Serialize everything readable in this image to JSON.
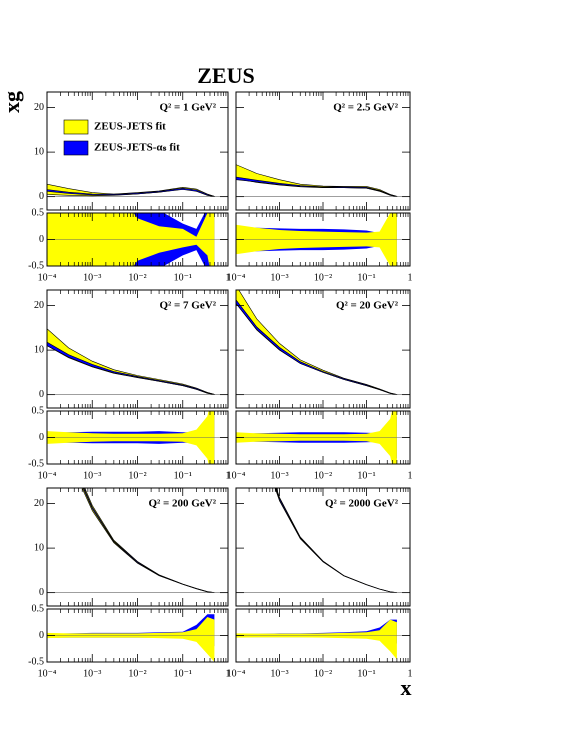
{
  "title": "ZEUS",
  "ylabel": "xg",
  "xlabel": "x",
  "chart_data": [
    {
      "type": "band",
      "annotation": "Q² = 1 GeV²",
      "log_x": true,
      "xlim": [
        0.0001,
        1
      ],
      "ylim": [
        -3,
        23.5
      ],
      "xticks": [
        0.0001,
        0.001,
        0.01,
        0.1,
        1
      ],
      "yticks": [
        0,
        10,
        20
      ],
      "x": [
        0.0001,
        0.0003,
        0.001,
        0.003,
        0.01,
        0.03,
        0.1,
        0.2,
        0.35,
        0.5
      ],
      "series": [
        {
          "name": "ZEUS-JETS fit",
          "color": "#ffff00",
          "low": [
            0.5,
            0.3,
            0.2,
            0.3,
            0.6,
            1.0,
            1.7,
            1.3,
            0.3,
            0
          ],
          "high": [
            2.8,
            1.8,
            0.9,
            0.6,
            0.9,
            1.3,
            2.1,
            1.7,
            0.6,
            0.05
          ]
        },
        {
          "name": "ZEUS-JETS-αₛ fit",
          "color": "#0000ff",
          "low": [
            1.2,
            0.7,
            0.4,
            0.35,
            0.6,
            1.0,
            1.6,
            1.2,
            0.3,
            0
          ],
          "high": [
            1.6,
            1.0,
            0.6,
            0.55,
            0.8,
            1.2,
            1.9,
            1.5,
            0.5,
            0.05
          ]
        }
      ]
    },
    {
      "type": "band",
      "log_x": true,
      "xlim": [
        0.0001,
        1
      ],
      "ylim": [
        -0.5,
        0.5
      ],
      "xticks": [
        {
          "value": 0.0001,
          "label": "10⁻⁴"
        },
        {
          "value": 0.001,
          "label": "10⁻³"
        },
        {
          "value": 0.01,
          "label": "10⁻²"
        },
        {
          "value": 0.1,
          "label": "10⁻¹"
        },
        1
      ],
      "yticks": [
        -0.5,
        0,
        0.5
      ],
      "x": [
        0.0001,
        0.0003,
        0.001,
        0.003,
        0.01,
        0.03,
        0.1,
        0.2,
        0.35,
        0.5
      ],
      "series": [
        {
          "color": "#0000ff",
          "low": [
            -1,
            -1,
            -1,
            -1,
            -1,
            -0.55,
            -0.3,
            -0.2,
            -0.6,
            -1
          ],
          "high": [
            1,
            1,
            1,
            1,
            1,
            0.55,
            0.3,
            0.2,
            0.6,
            1
          ]
        },
        {
          "color": "#ffff00",
          "low": [
            -1,
            -1,
            -1,
            -1,
            -0.4,
            -0.25,
            -0.15,
            -0.1,
            -0.3,
            -1
          ],
          "high": [
            1,
            1,
            1,
            1,
            0.4,
            0.25,
            0.2,
            0.05,
            0.5,
            1
          ]
        }
      ]
    },
    {
      "type": "band",
      "annotation": "Q² = 2.5 GeV²",
      "log_x": true,
      "xlim": [
        0.0001,
        1
      ],
      "ylim": [
        -3,
        23.5
      ],
      "xticks": [
        0.0001,
        0.001,
        0.01,
        0.1,
        1
      ],
      "yticks": [
        0,
        10,
        20
      ],
      "x": [
        0.0001,
        0.0003,
        0.001,
        0.003,
        0.01,
        0.03,
        0.1,
        0.2,
        0.35,
        0.5
      ],
      "series": [
        {
          "color": "#ffff00",
          "low": [
            4.0,
            3.2,
            2.6,
            2.2,
            2.0,
            2.0,
            1.9,
            1.2,
            0.3,
            0
          ],
          "high": [
            7.2,
            5.2,
            3.8,
            2.8,
            2.4,
            2.3,
            2.3,
            1.6,
            0.5,
            0.05
          ]
        },
        {
          "color": "#0000ff",
          "low": [
            3.8,
            3.3,
            2.7,
            2.3,
            2.1,
            2.0,
            1.9,
            1.3,
            0.35,
            0
          ],
          "high": [
            4.4,
            3.7,
            3.0,
            2.5,
            2.2,
            2.2,
            2.1,
            1.4,
            0.45,
            0.05
          ]
        }
      ]
    },
    {
      "type": "band",
      "log_x": true,
      "xlim": [
        0.0001,
        1
      ],
      "ylim": [
        -0.5,
        0.5
      ],
      "xticks": [
        {
          "value": 0.0001,
          "label": "10⁻⁴"
        },
        {
          "value": 0.001,
          "label": "10⁻³"
        },
        {
          "value": 0.01,
          "label": "10⁻²"
        },
        {
          "value": 0.1,
          "label": "10⁻¹"
        },
        1
      ],
      "yticks": [
        -0.5,
        0,
        0.5
      ],
      "x": [
        0.0001,
        0.0003,
        0.001,
        0.003,
        0.01,
        0.03,
        0.1,
        0.2,
        0.35,
        0.5
      ],
      "series": [
        {
          "color": "#0000ff",
          "low": [
            -0.25,
            -0.22,
            -0.21,
            -0.2,
            -0.2,
            -0.19,
            -0.17,
            -0.12,
            -0.3,
            -0.6
          ],
          "high": [
            0.25,
            0.22,
            0.21,
            0.2,
            0.2,
            0.19,
            0.17,
            0.12,
            0.3,
            0.6
          ]
        },
        {
          "color": "#ffff00",
          "low": [
            -0.28,
            -0.22,
            -0.18,
            -0.16,
            -0.15,
            -0.14,
            -0.13,
            -0.15,
            -0.5,
            -1
          ],
          "high": [
            0.28,
            0.22,
            0.18,
            0.16,
            0.15,
            0.14,
            0.13,
            0.15,
            0.5,
            1
          ]
        }
      ]
    },
    {
      "type": "band",
      "annotation": "Q² = 7 GeV²",
      "log_x": true,
      "xlim": [
        0.0001,
        1
      ],
      "ylim": [
        -3,
        23.5
      ],
      "xticks": [
        0.0001,
        0.001,
        0.01,
        0.1,
        1
      ],
      "yticks": [
        0,
        10,
        20
      ],
      "x": [
        0.0001,
        0.0003,
        0.001,
        0.003,
        0.01,
        0.03,
        0.1,
        0.2,
        0.35,
        0.5
      ],
      "series": [
        {
          "color": "#ffff00",
          "low": [
            11,
            8.3,
            6.2,
            4.8,
            3.8,
            3.0,
            2.0,
            1.2,
            0.3,
            0
          ],
          "high": [
            14.8,
            10.5,
            7.5,
            5.6,
            4.3,
            3.4,
            2.4,
            1.5,
            0.5,
            0.05
          ]
        },
        {
          "color": "#0000ff",
          "low": [
            11.0,
            8.4,
            6.3,
            4.9,
            3.9,
            3.0,
            2.0,
            1.2,
            0.35,
            0
          ],
          "high": [
            11.8,
            9.0,
            6.8,
            5.2,
            4.1,
            3.2,
            2.2,
            1.4,
            0.45,
            0.05
          ]
        }
      ]
    },
    {
      "type": "band",
      "log_x": true,
      "xlim": [
        0.0001,
        1
      ],
      "ylim": [
        -0.5,
        0.5
      ],
      "xticks": [
        {
          "value": 0.0001,
          "label": "10⁻⁴"
        },
        {
          "value": 0.001,
          "label": "10⁻³"
        },
        {
          "value": 0.01,
          "label": "10⁻²"
        },
        {
          "value": 0.1,
          "label": "10⁻¹"
        },
        1
      ],
      "yticks": [
        -0.5,
        0,
        0.5
      ],
      "x": [
        0.0001,
        0.0003,
        0.001,
        0.003,
        0.01,
        0.03,
        0.1,
        0.2,
        0.35,
        0.5
      ],
      "series": [
        {
          "color": "#0000ff",
          "low": [
            -0.08,
            -0.1,
            -0.11,
            -0.11,
            -0.11,
            -0.12,
            -0.1,
            -0.1,
            -0.2,
            -0.5
          ],
          "high": [
            0.08,
            0.1,
            0.11,
            0.11,
            0.11,
            0.12,
            0.1,
            0.1,
            0.2,
            0.5
          ]
        },
        {
          "color": "#ffff00",
          "low": [
            -0.12,
            -0.1,
            -0.08,
            -0.07,
            -0.07,
            -0.07,
            -0.08,
            -0.15,
            -0.4,
            -1
          ],
          "high": [
            0.12,
            0.1,
            0.08,
            0.07,
            0.07,
            0.07,
            0.08,
            0.15,
            0.4,
            1
          ]
        }
      ]
    },
    {
      "type": "band",
      "annotation": "Q² = 20 GeV²",
      "log_x": true,
      "xlim": [
        0.0001,
        1
      ],
      "ylim": [
        -3,
        23.5
      ],
      "xticks": [
        0.0001,
        0.001,
        0.01,
        0.1,
        1
      ],
      "yticks": [
        0,
        10,
        20
      ],
      "x": [
        0.0001,
        0.0003,
        0.001,
        0.003,
        0.01,
        0.03,
        0.1,
        0.2,
        0.35,
        0.5
      ],
      "series": [
        {
          "color": "#ffff00",
          "low": [
            20.5,
            14.5,
            10,
            7,
            5,
            3.4,
            2.0,
            1.1,
            0.25,
            0
          ],
          "high": [
            24.5,
            17,
            11.5,
            7.8,
            5.5,
            3.7,
            2.3,
            1.3,
            0.4,
            0.04
          ]
        },
        {
          "color": "#0000ff",
          "low": [
            20.5,
            14.6,
            10.1,
            7.0,
            5.0,
            3.4,
            2.0,
            1.1,
            0.25,
            0
          ],
          "high": [
            21.3,
            15.2,
            10.6,
            7.4,
            5.2,
            3.6,
            2.2,
            1.2,
            0.35,
            0.04
          ]
        }
      ]
    },
    {
      "type": "band",
      "log_x": true,
      "xlim": [
        0.0001,
        1
      ],
      "ylim": [
        -0.5,
        0.5
      ],
      "xticks": [
        {
          "value": 0.0001,
          "label": "10⁻⁴"
        },
        {
          "value": 0.001,
          "label": "10⁻³"
        },
        {
          "value": 0.01,
          "label": "10⁻²"
        },
        {
          "value": 0.1,
          "label": "10⁻¹"
        },
        1
      ],
      "yticks": [
        -0.5,
        0,
        0.5
      ],
      "x": [
        0.0001,
        0.0003,
        0.001,
        0.003,
        0.01,
        0.03,
        0.1,
        0.2,
        0.35,
        0.5
      ],
      "series": [
        {
          "color": "#0000ff",
          "low": [
            -0.06,
            -0.08,
            -0.09,
            -0.1,
            -0.1,
            -0.1,
            -0.09,
            -0.08,
            -0.15,
            -0.4
          ],
          "high": [
            0.06,
            0.08,
            0.09,
            0.1,
            0.1,
            0.1,
            0.09,
            0.08,
            0.15,
            0.4
          ]
        },
        {
          "color": "#ffff00",
          "low": [
            -0.1,
            -0.08,
            -0.07,
            -0.06,
            -0.06,
            -0.06,
            -0.07,
            -0.12,
            -0.35,
            -0.9
          ],
          "high": [
            0.1,
            0.08,
            0.07,
            0.06,
            0.06,
            0.06,
            0.07,
            0.12,
            0.35,
            0.9
          ]
        }
      ]
    },
    {
      "type": "band",
      "annotation": "Q² = 200 GeV²",
      "log_x": true,
      "xlim": [
        0.0001,
        1
      ],
      "ylim": [
        -3,
        23.5
      ],
      "xticks": [
        0.0001,
        0.001,
        0.01,
        0.1,
        1
      ],
      "yticks": [
        0,
        10,
        20
      ],
      "x": [
        0.0001,
        0.0003,
        0.001,
        0.003,
        0.01,
        0.03,
        0.1,
        0.2,
        0.35,
        0.5
      ],
      "series": [
        {
          "color": "#ffff00",
          "low": [
            43.6,
            30.1,
            18.4,
            11.2,
            6.6,
            3.8,
            1.85,
            0.85,
            0.17,
            0
          ],
          "high": [
            46.4,
            31.9,
            19.6,
            11.8,
            7.0,
            4.0,
            1.95,
            0.95,
            0.23,
            0.02
          ]
        },
        {
          "color": "#0000ff",
          "low": [
            44.6,
            30.7,
            18.8,
            11.4,
            6.7,
            3.85,
            1.88,
            0.88,
            0.19,
            0
          ],
          "high": [
            45.4,
            31.3,
            19.2,
            11.6,
            6.9,
            3.95,
            1.92,
            0.92,
            0.21,
            0.02
          ]
        }
      ]
    },
    {
      "type": "band",
      "log_x": true,
      "xlim": [
        0.0001,
        1
      ],
      "ylim": [
        -0.5,
        0.5
      ],
      "xticks": [
        {
          "value": 0.0001,
          "label": "10⁻⁴"
        },
        {
          "value": 0.001,
          "label": "10⁻³"
        },
        {
          "value": 0.01,
          "label": "10⁻²"
        },
        {
          "value": 0.1,
          "label": "10⁻¹"
        },
        1
      ],
      "yticks": [
        -0.5,
        0,
        0.5
      ],
      "x": [
        0.0001,
        0.0003,
        0.001,
        0.003,
        0.01,
        0.03,
        0.1,
        0.2,
        0.35,
        0.5
      ],
      "series": [
        {
          "color": "#0000ff",
          "low": [
            -0.04,
            -0.04,
            -0.04,
            -0.04,
            -0.04,
            -0.04,
            -0.04,
            -0.06,
            -0.2,
            -0.2
          ],
          "high": [
            0.03,
            0.04,
            0.05,
            0.05,
            0.05,
            0.06,
            0.07,
            0.2,
            0.4,
            0.4
          ]
        },
        {
          "color": "#ffff00",
          "low": [
            -0.05,
            -0.04,
            -0.04,
            -0.04,
            -0.04,
            -0.05,
            -0.06,
            -0.12,
            -0.35,
            -0.5
          ],
          "high": [
            0.05,
            0.04,
            0.04,
            0.04,
            0.04,
            0.05,
            0.06,
            0.12,
            0.35,
            0.3
          ]
        }
      ]
    },
    {
      "type": "band",
      "annotation": "Q² = 2000 GeV²",
      "log_x": true,
      "xlim": [
        0.0001,
        1
      ],
      "ylim": [
        -3,
        23.5
      ],
      "xticks": [
        0.0001,
        0.001,
        0.01,
        0.1,
        1
      ],
      "yticks": [
        0,
        10,
        20
      ],
      "x": [
        0.0001,
        0.0003,
        0.001,
        0.003,
        0.01,
        0.03,
        0.1,
        0.2,
        0.35,
        0.5
      ],
      "series": [
        {
          "color": "#ffff00",
          "low": [
            53.9,
            35.3,
            20.6,
            12.1,
            6.9,
            3.75,
            1.77,
            0.78,
            0.16,
            0
          ],
          "high": [
            56.1,
            36.7,
            21.4,
            12.5,
            7.1,
            3.85,
            1.83,
            0.82,
            0.2,
            0.02
          ]
        },
        {
          "color": "#0000ff",
          "low": [
            54.5,
            35.7,
            20.8,
            12.2,
            6.95,
            3.78,
            1.79,
            0.79,
            0.17,
            0
          ],
          "high": [
            55.5,
            36.3,
            21.2,
            12.4,
            7.05,
            3.82,
            1.81,
            0.81,
            0.19,
            0.02
          ]
        }
      ]
    },
    {
      "type": "band",
      "log_x": true,
      "xlim": [
        0.0001,
        1
      ],
      "ylim": [
        -0.5,
        0.5
      ],
      "xticks": [
        {
          "value": 0.0001,
          "label": "10⁻⁴"
        },
        {
          "value": 0.001,
          "label": "10⁻³"
        },
        {
          "value": 0.01,
          "label": "10⁻²"
        },
        {
          "value": 0.1,
          "label": "10⁻¹"
        },
        1
      ],
      "yticks": [
        -0.5,
        0,
        0.5
      ],
      "x": [
        0.0001,
        0.0003,
        0.001,
        0.003,
        0.01,
        0.03,
        0.1,
        0.2,
        0.35,
        0.5
      ],
      "series": [
        {
          "color": "#0000ff",
          "low": [
            -0.03,
            -0.03,
            -0.03,
            -0.03,
            -0.03,
            -0.03,
            -0.04,
            -0.05,
            -0.15,
            -0.15
          ],
          "high": [
            0.03,
            0.03,
            0.04,
            0.04,
            0.05,
            0.06,
            0.08,
            0.15,
            0.3,
            0.3
          ]
        },
        {
          "color": "#ffff00",
          "low": [
            -0.04,
            -0.035,
            -0.035,
            -0.035,
            -0.04,
            -0.05,
            -0.06,
            -0.1,
            -0.3,
            -0.45
          ],
          "high": [
            0.04,
            0.035,
            0.035,
            0.035,
            0.04,
            0.05,
            0.06,
            0.1,
            0.3,
            0.25
          ]
        }
      ]
    }
  ]
}
